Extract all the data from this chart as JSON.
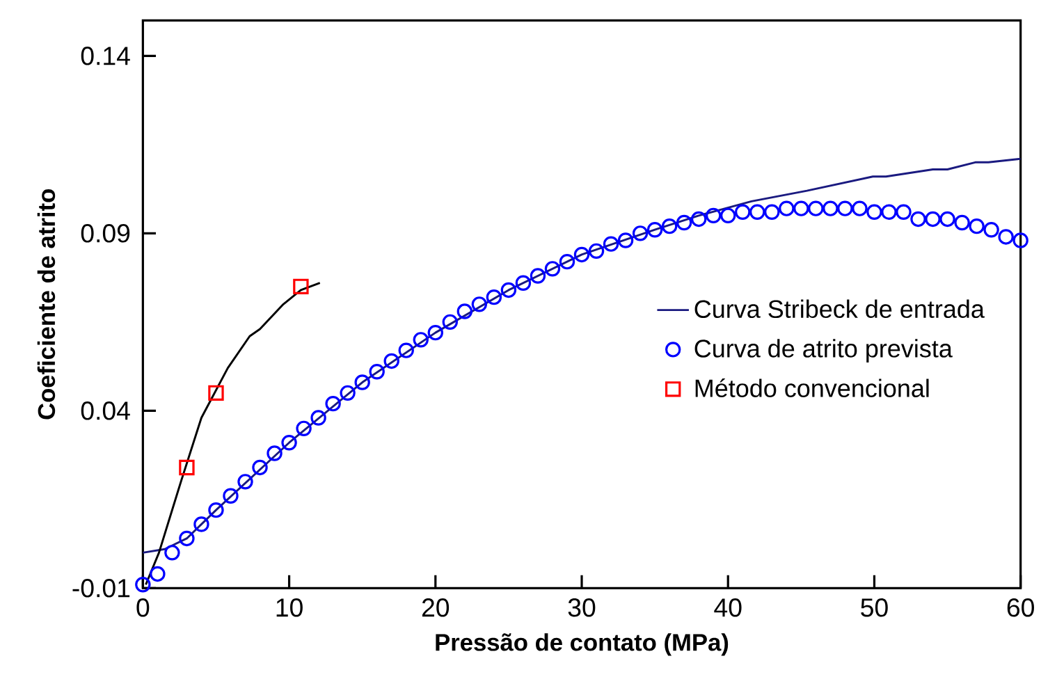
{
  "chart_data": {
    "type": "line",
    "xlabel": "Pressão de contato (MPa)",
    "ylabel": "Coeficiente de atrito",
    "xlim": [
      0,
      60
    ],
    "ylim": [
      -0.01,
      0.15
    ],
    "xticks": [
      0,
      10,
      20,
      30,
      40,
      50,
      60
    ],
    "yticks": [
      -0.01,
      0.04,
      0.09,
      0.14
    ],
    "grid": false,
    "legend": "right",
    "series": [
      {
        "name": "Curva Stribeck de entrada",
        "type": "line",
        "color": "#1a1a80",
        "line_style": "solid",
        "marker": "none",
        "x": [
          0,
          1.5,
          3,
          5,
          10,
          15,
          20,
          25,
          30,
          35,
          38,
          41.6,
          45.4,
          49.9,
          50.8,
          54,
          55,
          56.9,
          57.8,
          60
        ],
        "values": [
          0.0,
          0.001,
          0.004,
          0.012,
          0.031,
          0.048,
          0.062,
          0.074,
          0.084,
          0.091,
          0.095,
          0.099,
          0.102,
          0.106,
          0.106,
          0.108,
          0.108,
          0.11,
          0.11,
          0.111
        ]
      },
      {
        "name": "Curva de atrito prevista",
        "type": "scatter",
        "color": "#0000ff",
        "marker": "circle",
        "x": [
          0,
          1,
          2,
          3,
          4,
          5,
          6,
          7,
          8,
          9,
          10,
          11,
          12,
          13,
          14,
          15,
          16,
          17,
          18,
          19,
          20,
          21,
          22,
          23,
          24,
          25,
          26,
          27,
          28,
          29,
          30,
          31,
          32,
          33,
          34,
          35,
          36,
          37,
          38,
          39,
          40,
          41,
          42,
          43,
          44,
          45,
          46,
          47,
          48,
          49,
          50,
          51,
          52,
          53,
          54,
          55,
          56,
          57,
          58,
          59,
          60
        ],
        "values": [
          -0.009,
          -0.006,
          0.0,
          0.004,
          0.008,
          0.012,
          0.016,
          0.02,
          0.024,
          0.028,
          0.031,
          0.035,
          0.038,
          0.042,
          0.045,
          0.048,
          0.051,
          0.054,
          0.057,
          0.06,
          0.062,
          0.065,
          0.068,
          0.07,
          0.072,
          0.074,
          0.076,
          0.078,
          0.08,
          0.082,
          0.084,
          0.085,
          0.087,
          0.088,
          0.09,
          0.091,
          0.092,
          0.093,
          0.094,
          0.095,
          0.095,
          0.096,
          0.096,
          0.096,
          0.097,
          0.097,
          0.097,
          0.097,
          0.097,
          0.097,
          0.096,
          0.096,
          0.096,
          0.094,
          0.094,
          0.094,
          0.093,
          0.092,
          0.091,
          0.089,
          0.088
        ]
      },
      {
        "name": "Método convencional",
        "type": "scatter",
        "color": "#ff0000",
        "marker": "square",
        "x": [
          3.0,
          5.0,
          10.8
        ],
        "values": [
          0.024,
          0.045,
          0.075
        ]
      },
      {
        "color": "#000000",
        "line_style": "solid",
        "marker": "none",
        "x": [
          0.2,
          1.1,
          2.6,
          4.0,
          5.8,
          7.3,
          8.0,
          9.6,
          10.8,
          12.1
        ],
        "values": [
          -0.009,
          0.0,
          0.02,
          0.038,
          0.052,
          0.061,
          0.063,
          0.07,
          0.074,
          0.076
        ]
      }
    ]
  }
}
